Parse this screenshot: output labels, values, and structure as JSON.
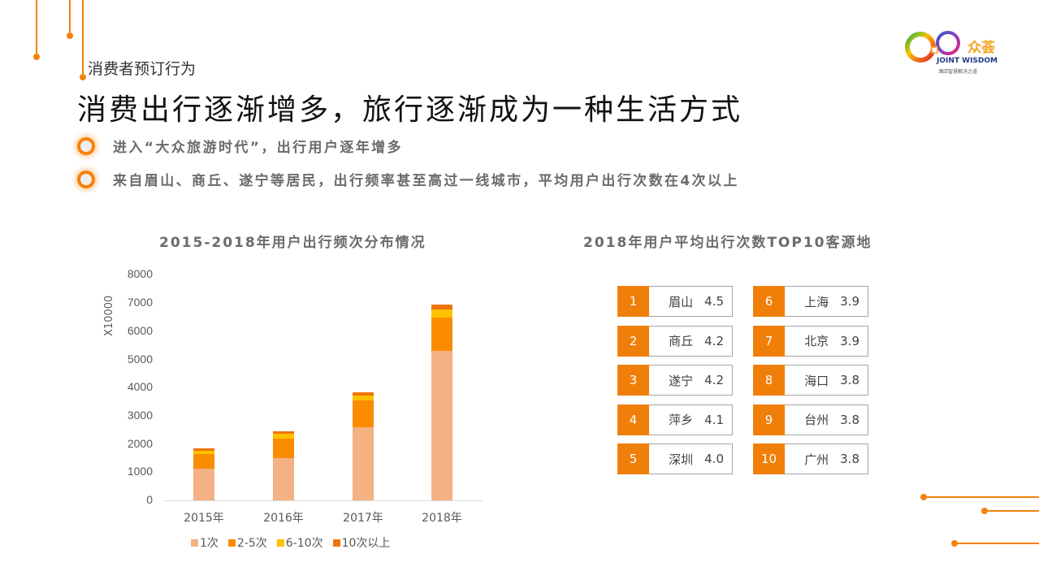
{
  "header": {
    "section_label": "消费者预订行为",
    "headline": "消费出行逐渐增多，旅行逐渐成为一种生活方式",
    "bullets": [
      "进入“大众旅游时代”，出行用户逐年增多",
      "来自眉山、商丘、遂宁等居民，出行频率甚至高过一线城市，平均用户出行次数在4次以上"
    ]
  },
  "logo": {
    "name_zh": "众荟",
    "name_en": "JOINT WISDOM",
    "tagline": "酒店智慧解决之道"
  },
  "colors": {
    "accent": "#f5820b",
    "series_1": "#f4b183",
    "series_2_5": "#fb8c00",
    "series_6_10": "#ffc000",
    "series_10plus": "#f07409",
    "rank_badge": "#f07f09"
  },
  "chart_data": [
    {
      "type": "bar",
      "stacked": true,
      "title": "2015-2018年用户出行频次分布情况",
      "xlabel": "",
      "ylabel": "X10000",
      "ylim": [
        0,
        8000
      ],
      "yticks": [
        "0",
        "1000",
        "2000",
        "3000",
        "4000",
        "5000",
        "6000",
        "7000",
        "8000"
      ],
      "categories": [
        "2015年",
        "2016年",
        "2017年",
        "2018年"
      ],
      "series": [
        {
          "name": "1次",
          "values": [
            1130,
            1500,
            2600,
            5300
          ]
        },
        {
          "name": "2-5次",
          "values": [
            520,
            700,
            930,
            1190
          ]
        },
        {
          "name": "6-10次",
          "values": [
            120,
            160,
            180,
            270
          ]
        },
        {
          "name": "10次以上",
          "values": [
            80,
            90,
            130,
            170
          ]
        }
      ],
      "legend_position": "bottom",
      "grid": false
    },
    {
      "type": "table",
      "title": "2018年用户平均出行次数TOP10客源地",
      "columns": [
        "rank",
        "city",
        "avg_trips"
      ],
      "rows": [
        {
          "rank": "1",
          "city": "眉山",
          "value": "4.5"
        },
        {
          "rank": "2",
          "city": "商丘",
          "value": "4.2"
        },
        {
          "rank": "3",
          "city": "遂宁",
          "value": "4.2"
        },
        {
          "rank": "4",
          "city": "萍乡",
          "value": "4.1"
        },
        {
          "rank": "5",
          "city": "深圳",
          "value": "4.0"
        },
        {
          "rank": "6",
          "city": "上海",
          "value": "3.9"
        },
        {
          "rank": "7",
          "city": "北京",
          "value": "3.9"
        },
        {
          "rank": "8",
          "city": "海口",
          "value": "3.8"
        },
        {
          "rank": "9",
          "city": "台州",
          "value": "3.8"
        },
        {
          "rank": "10",
          "city": "广州",
          "value": "3.8"
        }
      ]
    }
  ]
}
